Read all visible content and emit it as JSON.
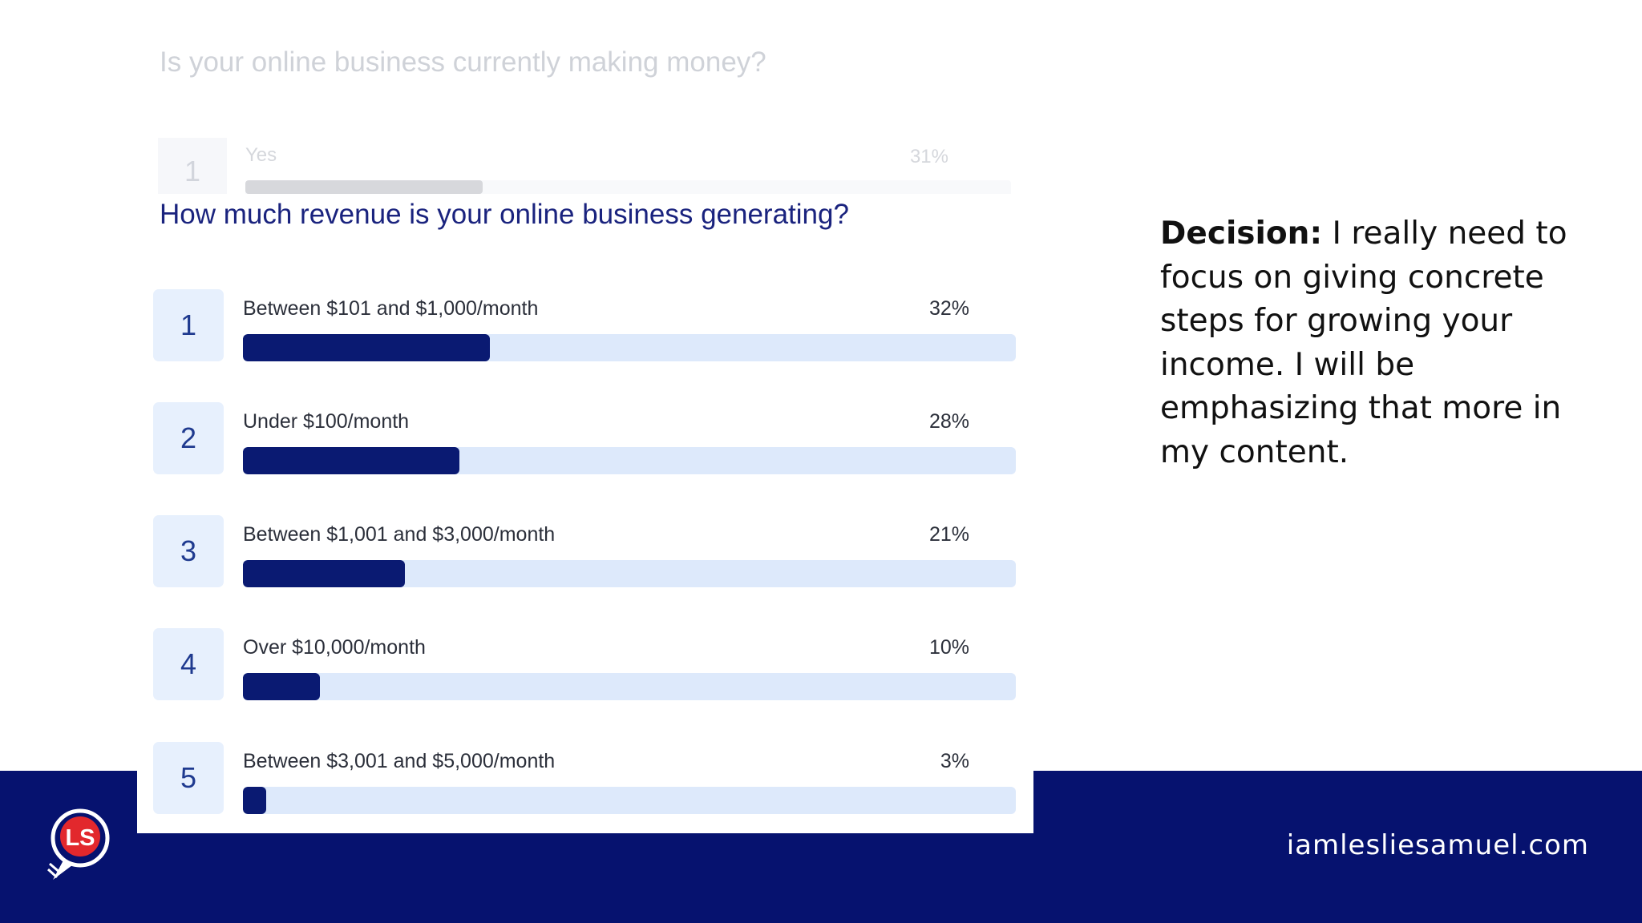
{
  "faded_poll": {
    "question": "Is your online business currently making money?",
    "option": {
      "number": "1",
      "label": "Yes",
      "percent": "31%",
      "value": 31
    }
  },
  "poll": {
    "question": "How much revenue is your online business generating?",
    "options": [
      {
        "number": "1",
        "label": "Between $101 and $1,000/month",
        "percent": "32%",
        "value": 32
      },
      {
        "number": "2",
        "label": "Under $100/month",
        "percent": "28%",
        "value": 28
      },
      {
        "number": "3",
        "label": "Between $1,001 and $3,000/month",
        "percent": "21%",
        "value": 21
      },
      {
        "number": "4",
        "label": "Over $10,000/month",
        "percent": "10%",
        "value": 10
      },
      {
        "number": "5",
        "label": "Between $3,001 and $5,000/month",
        "percent": "3%",
        "value": 3
      }
    ]
  },
  "decision": {
    "heading": "Decision:",
    "text": "I really need to focus on giving concrete steps for growing your income. I will be emphasizing that more in my content."
  },
  "footer": {
    "logo_text": "LS",
    "url": "iamlesliesamuel.com"
  },
  "colors": {
    "footer_band": "#06126f",
    "bar_fill": "#0a1a72",
    "bar_track": "#dde9fb",
    "logo_red": "#e2282d"
  },
  "icons": {
    "logo": "ls-chat-bubble-logo"
  }
}
